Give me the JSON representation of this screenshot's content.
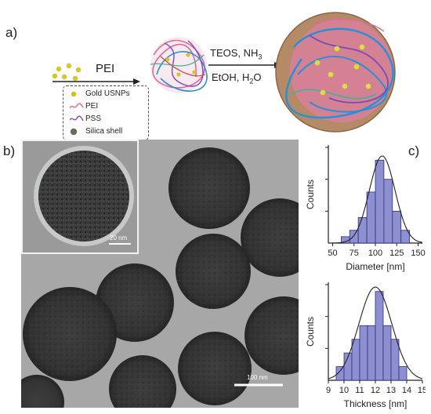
{
  "panels": {
    "a": "a)",
    "b": "b)",
    "c": "c)"
  },
  "scheme": {
    "step1_label": "PEI",
    "step2_line1": "TEOS, NH",
    "step2_line1_sub": "3",
    "step2_line2_pre": "EtOH, H",
    "step2_line2_sub": "2",
    "step2_line2_post": "O"
  },
  "legend": {
    "items": [
      {
        "label": "Gold USNPs",
        "icon": "gold-dot-icon",
        "color": "#d4c21a"
      },
      {
        "label": "PEI",
        "icon": "pei-strand-icon",
        "color": "#e0709a"
      },
      {
        "label": "PSS",
        "icon": "pss-strand-icon",
        "color": "#8a4fb8"
      },
      {
        "label": "Silica shell",
        "icon": "silica-sphere-icon",
        "color": "#6f6a5a"
      }
    ]
  },
  "tem": {
    "inset_scale": "20 nm",
    "main_scale": "100 nm"
  },
  "chart_data": [
    {
      "type": "bar",
      "subtype": "histogram",
      "xlabel": "Diameter [nm]",
      "ylabel": "Counts",
      "xlim": [
        45,
        155
      ],
      "xticks": [
        50,
        75,
        100,
        125,
        150
      ],
      "bin_edges": [
        60,
        70,
        80,
        90,
        100,
        110,
        120,
        130,
        140
      ],
      "values": [
        1,
        2,
        4,
        8,
        13,
        10,
        5,
        2
      ],
      "ylim": [
        0,
        15
      ],
      "fit": "gaussian",
      "fit_mean": 108,
      "fit_sd": 15,
      "bar_color": "#8d8fd0"
    },
    {
      "type": "bar",
      "subtype": "histogram",
      "xlabel": "Thickness [nm]",
      "ylabel": "Counts",
      "xlim": [
        9,
        15
      ],
      "xticks": [
        9,
        10,
        11,
        12,
        13,
        14,
        15
      ],
      "bin_edges": [
        9.5,
        10,
        10.5,
        11,
        11.5,
        12,
        12.5,
        13,
        13.5,
        14
      ],
      "values": [
        2,
        4,
        6,
        8,
        8,
        13,
        8,
        6,
        2
      ],
      "ylim": [
        0,
        14
      ],
      "fit": "gaussian",
      "fit_mean": 12.0,
      "fit_sd": 1.05,
      "bar_color": "#8d8fd0"
    }
  ]
}
